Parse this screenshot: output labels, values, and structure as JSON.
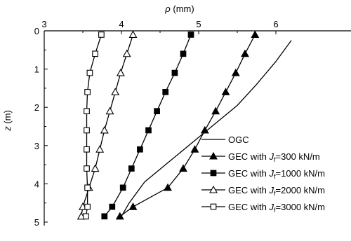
{
  "chart_data": {
    "type": "line",
    "xlabel": {
      "symbol": "ρ",
      "unit": " (mm)"
    },
    "ylabel": {
      "symbol": "z",
      "unit": " (m)"
    },
    "xlim": [
      3,
      6.4
    ],
    "ylim": [
      0,
      5
    ],
    "x_ticks": [
      "3",
      "4",
      "5",
      "6"
    ],
    "y_ticks": [
      "0",
      "1",
      "2",
      "3",
      "4",
      "5"
    ],
    "y_inverted": true,
    "x_axis_position": "top",
    "legend_position": "bottom-right",
    "series": [
      {
        "key": "ogc",
        "legend": {
          "prefix": "OGC",
          "sub": "",
          "suffix": ""
        },
        "marker": "none",
        "points": [
          [
            6.2,
            0.25
          ],
          [
            6.0,
            0.8
          ],
          [
            5.75,
            1.4
          ],
          [
            5.5,
            1.95
          ],
          [
            5.2,
            2.45
          ],
          [
            4.9,
            2.95
          ],
          [
            4.6,
            3.45
          ],
          [
            4.3,
            3.95
          ],
          [
            4.1,
            4.5
          ],
          [
            4.0,
            4.85
          ]
        ]
      },
      {
        "key": "gec300",
        "legend": {
          "prefix": "GEC with ",
          "sub": "f",
          "suffix": "=300 kN/m"
        },
        "marker": "triangle-filled",
        "points": [
          [
            5.73,
            0.1
          ],
          [
            5.6,
            0.6
          ],
          [
            5.48,
            1.1
          ],
          [
            5.35,
            1.6
          ],
          [
            5.22,
            2.1
          ],
          [
            5.08,
            2.6
          ],
          [
            4.95,
            3.1
          ],
          [
            4.8,
            3.6
          ],
          [
            4.6,
            4.1
          ],
          [
            4.15,
            4.6
          ],
          [
            3.98,
            4.85
          ]
        ]
      },
      {
        "key": "gec1000",
        "legend": {
          "prefix": "GEC with ",
          "sub": "f",
          "suffix": "=1000 kN/m"
        },
        "marker": "square-filled",
        "points": [
          [
            4.9,
            0.1
          ],
          [
            4.8,
            0.6
          ],
          [
            4.69,
            1.1
          ],
          [
            4.57,
            1.6
          ],
          [
            4.46,
            2.1
          ],
          [
            4.35,
            2.6
          ],
          [
            4.24,
            3.1
          ],
          [
            4.13,
            3.6
          ],
          [
            4.02,
            4.1
          ],
          [
            3.88,
            4.6
          ],
          [
            3.78,
            4.85
          ]
        ]
      },
      {
        "key": "gec2000",
        "legend": {
          "prefix": "GEC with ",
          "sub": "f",
          "suffix": "=2000 kN/m"
        },
        "marker": "triangle-open",
        "points": [
          [
            4.15,
            0.1
          ],
          [
            4.07,
            0.6
          ],
          [
            3.99,
            1.1
          ],
          [
            3.92,
            1.6
          ],
          [
            3.85,
            2.1
          ],
          [
            3.78,
            2.6
          ],
          [
            3.72,
            3.1
          ],
          [
            3.66,
            3.6
          ],
          [
            3.58,
            4.1
          ],
          [
            3.5,
            4.6
          ],
          [
            3.48,
            4.85
          ]
        ]
      },
      {
        "key": "gec3000",
        "legend": {
          "prefix": "GEC with ",
          "sub": "f",
          "suffix": "=3000 kN/m"
        },
        "marker": "square-open",
        "points": [
          [
            3.74,
            0.1
          ],
          [
            3.66,
            0.6
          ],
          [
            3.59,
            1.1
          ],
          [
            3.56,
            1.6
          ],
          [
            3.55,
            2.1
          ],
          [
            3.55,
            2.6
          ],
          [
            3.55,
            3.1
          ],
          [
            3.55,
            3.6
          ],
          [
            3.56,
            4.1
          ],
          [
            3.56,
            4.6
          ],
          [
            3.54,
            4.85
          ]
        ]
      }
    ]
  }
}
